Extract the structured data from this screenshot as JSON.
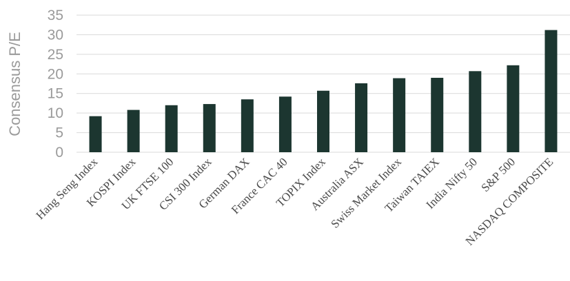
{
  "chart_data": {
    "type": "bar",
    "title": "",
    "xlabel": "",
    "ylabel": "Consensus P/E",
    "ylim": [
      0,
      35
    ],
    "yticks": [
      0,
      5,
      10,
      15,
      20,
      25,
      30,
      35
    ],
    "grid": true,
    "bar_color": "#1c3630",
    "categories": [
      "Hang Seng Index",
      "KOSPI Index",
      "UK FTSE 100",
      "CSI 300 Index",
      "German DAX",
      "France CAC 40",
      "TOPIX Index",
      "Australia ASX",
      "Swiss Market Index",
      "Taiwan TAIEX",
      "India Nifty 50",
      "S&P 500",
      "NASDAQ COMPOSITE"
    ],
    "values": [
      9.2,
      10.8,
      12.0,
      12.3,
      13.5,
      14.2,
      15.7,
      17.6,
      18.9,
      19.0,
      20.7,
      22.2,
      31.2
    ]
  }
}
